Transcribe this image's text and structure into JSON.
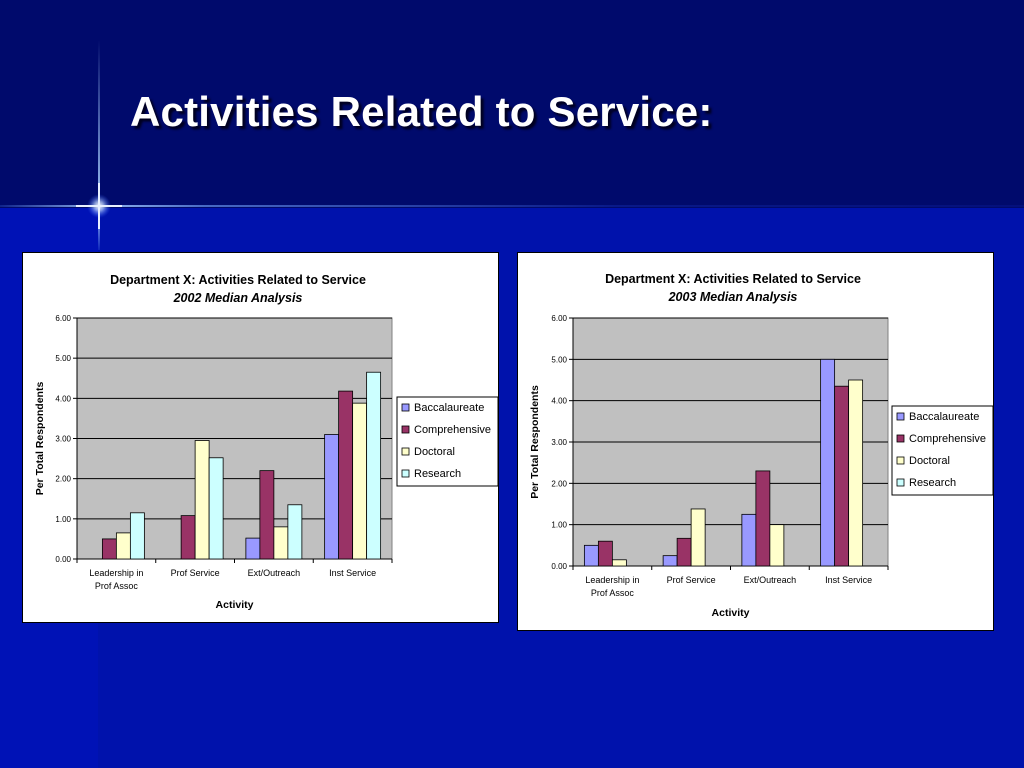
{
  "slide": {
    "title": "Activities Related to Service:"
  },
  "chart_data": [
    {
      "type": "bar",
      "title": "Department X:  Activities Related to Service",
      "subtitle": "2002 Median Analysis",
      "xlabel": "Activity",
      "ylabel": "Per Total Respondents",
      "categories": [
        [
          "Leadership in",
          "Prof Assoc"
        ],
        [
          "Prof Service"
        ],
        [
          "Ext/Outreach"
        ],
        [
          "Inst Service"
        ]
      ],
      "series": [
        {
          "name": "Baccalaureate",
          "color": "#9999ff",
          "values": [
            0,
            0,
            0.52,
            3.1
          ]
        },
        {
          "name": "Comprehensive",
          "color": "#993366",
          "values": [
            0.5,
            1.08,
            2.2,
            4.18
          ]
        },
        {
          "name": "Doctoral",
          "color": "#ffffcc",
          "values": [
            0.65,
            2.95,
            0.8,
            3.88
          ]
        },
        {
          "name": "Research",
          "color": "#ccffff",
          "values": [
            1.15,
            2.52,
            1.35,
            4.65
          ]
        }
      ],
      "ylim": [
        0,
        6
      ],
      "yticks": [
        "0.00",
        "1.00",
        "2.00",
        "3.00",
        "4.00",
        "5.00",
        "6.00"
      ],
      "grid": true,
      "legend": "right"
    },
    {
      "type": "bar",
      "title": "Department X:  Activities Related to Service",
      "subtitle": "2003 Median Analysis",
      "xlabel": "Activity",
      "ylabel": "Per Total Respondents",
      "categories": [
        [
          "Leadership in",
          "Prof Assoc"
        ],
        [
          "Prof Service"
        ],
        [
          "Ext/Outreach"
        ],
        [
          "Inst Service"
        ]
      ],
      "series": [
        {
          "name": "Baccalaureate",
          "color": "#9999ff",
          "values": [
            0.5,
            0.25,
            1.25,
            5.0
          ]
        },
        {
          "name": "Comprehensive",
          "color": "#993366",
          "values": [
            0.6,
            0.67,
            2.3,
            4.35
          ]
        },
        {
          "name": "Doctoral",
          "color": "#ffffcc",
          "values": [
            0.15,
            1.38,
            1.0,
            4.5
          ]
        },
        {
          "name": "Research",
          "color": "#ccffff",
          "values": [
            0,
            0,
            0,
            0
          ]
        }
      ],
      "ylim": [
        0,
        6
      ],
      "yticks": [
        "0.00",
        "1.00",
        "2.00",
        "3.00",
        "4.00",
        "5.00",
        "6.00"
      ],
      "grid": true,
      "legend": "right"
    }
  ]
}
